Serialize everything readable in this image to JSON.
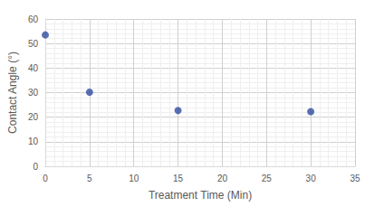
{
  "chart_data": {
    "type": "scatter",
    "x_label": "Treatment Time (Min)",
    "y_label": "Contact Angle (°)",
    "x": [
      0,
      5,
      15,
      30
    ],
    "values": [
      53.5,
      30.2,
      22.7,
      22.3
    ],
    "color": "#2f4b9e",
    "marker": "circle",
    "xlim": [
      0,
      35
    ],
    "xticks": [
      0,
      5,
      10,
      15,
      20,
      25,
      30,
      35
    ],
    "ylim": [
      0,
      60
    ],
    "yticks": [
      0,
      10,
      20,
      30,
      40,
      50,
      60
    ],
    "grid": true
  }
}
